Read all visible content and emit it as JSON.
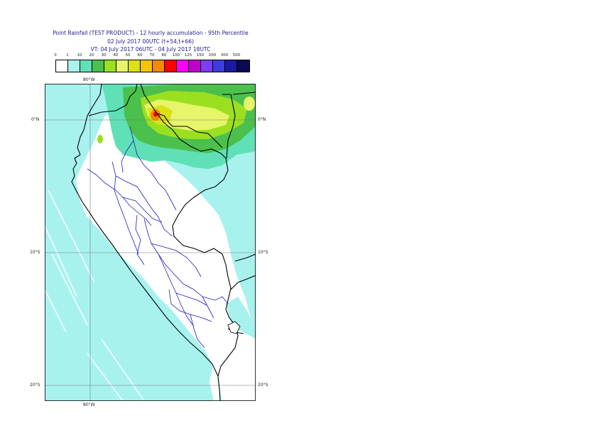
{
  "header": {
    "title_line1": "Point Rainfall (TEST PRODUCT) - 12 hourly accumulation - 95th Percentile",
    "title_line2": "02 July 2017 00UTC (t+54,t+66)",
    "title_line3": "VT: 04 July 2017 06UTC - 04 July 2017 18UTC"
  },
  "legend": {
    "ticks": [
      "0",
      "1",
      "10",
      "20",
      "30",
      "40",
      "50",
      "60",
      "70",
      "80",
      "100",
      "125",
      "150",
      "200",
      "300",
      "500"
    ],
    "colors": [
      "#ffffff",
      "#a8f2ee",
      "#5fe0b6",
      "#4cc04c",
      "#9be020",
      "#e6f56a",
      "#dde012",
      "#f5c400",
      "#f58a00",
      "#ff0000",
      "#ff00ff",
      "#c000c8",
      "#7a3ff0",
      "#3d3ddd",
      "#1a1aa0",
      "#0a0a50"
    ]
  },
  "map": {
    "lon_label_top": "80°W",
    "lon_label_bottom": "80°W",
    "lat_labels": [
      "0°N",
      "10°S",
      "20°S"
    ]
  }
}
